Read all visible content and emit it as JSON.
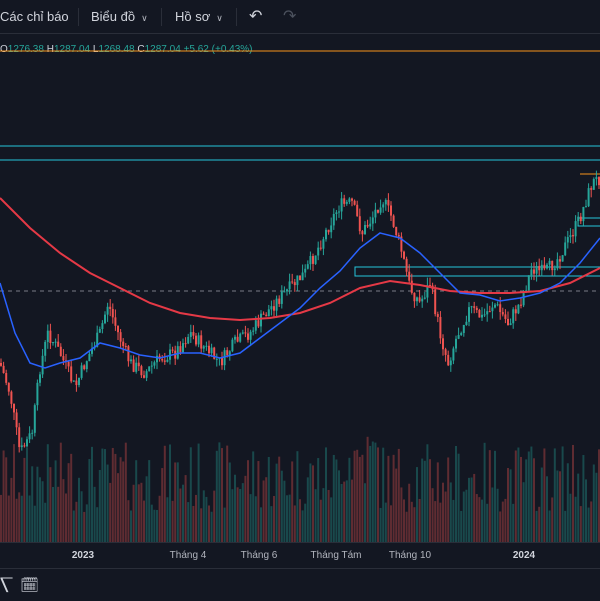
{
  "toolbar": {
    "indicators_label": "Các chỉ báo",
    "chart_label": "Biểu đồ",
    "profile_label": "Hồ sơ"
  },
  "legend": {
    "o_key": "O",
    "o_val": "1276.38",
    "h_key": "H",
    "h_val": "1287.04",
    "l_key": "L",
    "l_val": "1268.48",
    "c_key": "C",
    "c_val": "1287.04",
    "change": "+5.62 (+0.43%)"
  },
  "colors": {
    "background": "#131722",
    "up": "#26a69a",
    "down": "#ef5350",
    "ma_fast": "#2962ff",
    "ma_slow": "#e53946",
    "zone": "#26c6da",
    "price_line": "#f7931a"
  },
  "xaxis": {
    "labels": [
      {
        "text": "2023",
        "year": true
      },
      {
        "text": "Tháng 4",
        "year": false
      },
      {
        "text": "Tháng 6",
        "year": false
      },
      {
        "text": "Tháng Tám",
        "year": false
      },
      {
        "text": "Tháng 10",
        "year": false
      },
      {
        "text": "2024",
        "year": true
      }
    ]
  },
  "icons": {
    "undo": "undo-icon",
    "redo": "redo-icon",
    "goto_date": "calendar-goto-icon"
  }
}
